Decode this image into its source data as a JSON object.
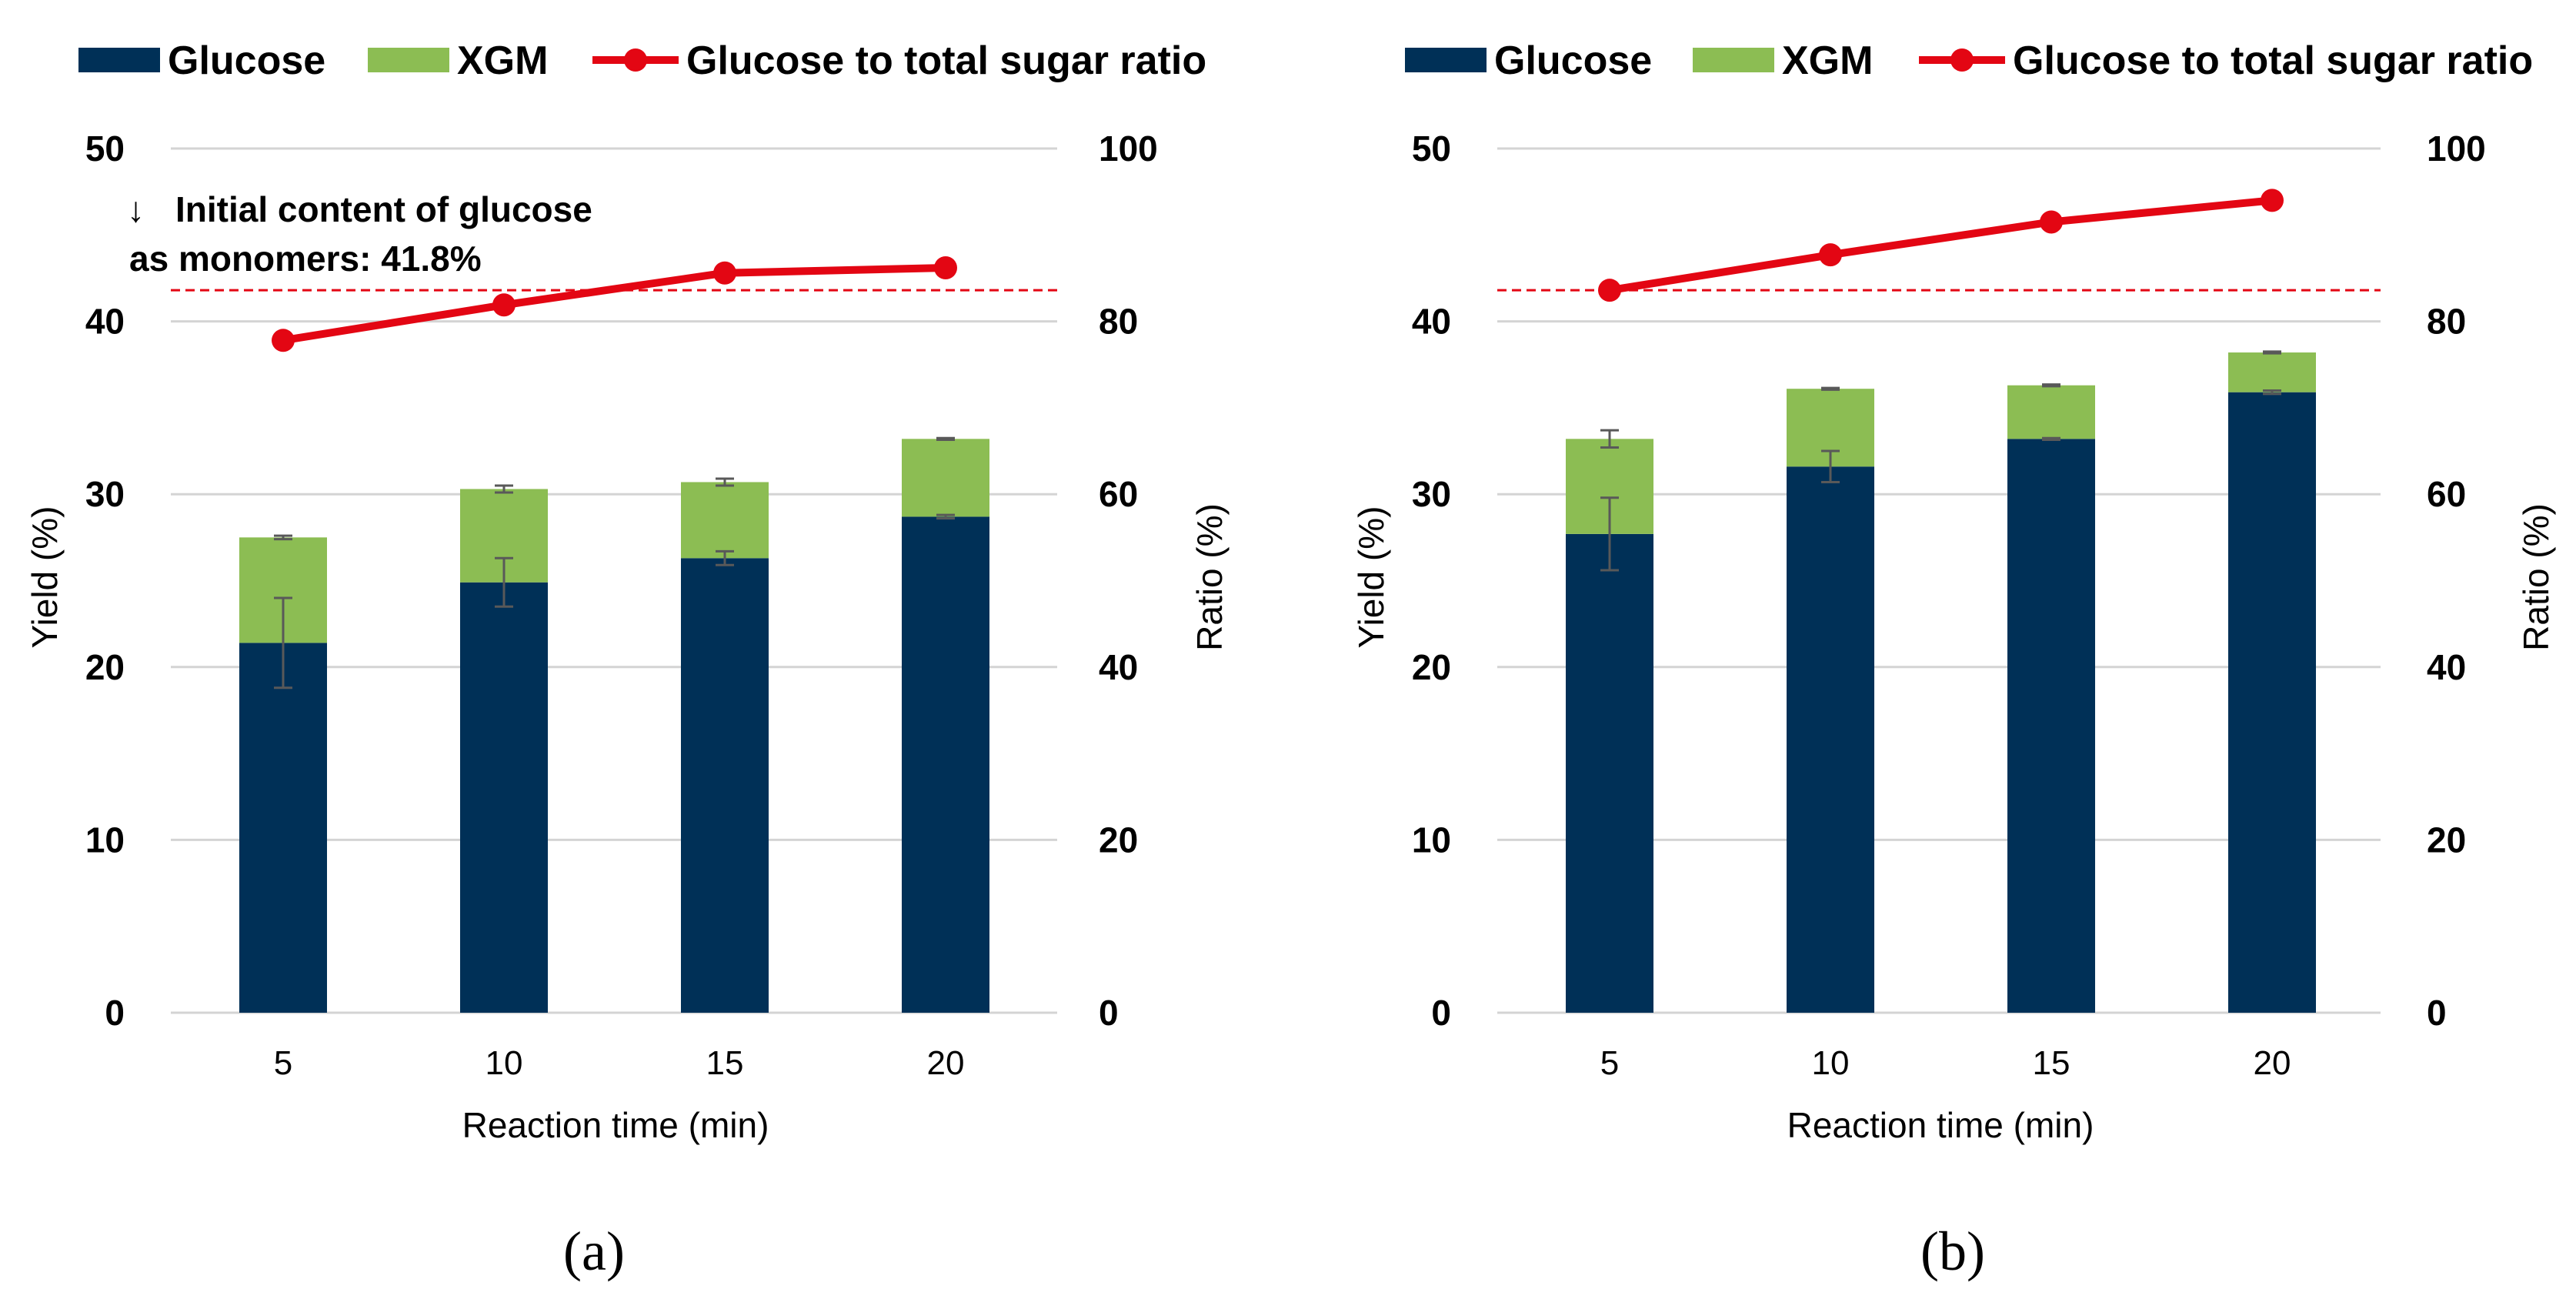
{
  "colors": {
    "glucose": "#003057",
    "xgm": "#8cbd53",
    "ratio": "#e30613",
    "grid": "#d4d4d4",
    "threshold": "#e30613",
    "errorbar": "#595959"
  },
  "chart_data": [
    {
      "type": "bar",
      "stacked": true,
      "panel_label": "(a)",
      "categories": [
        "5",
        "10",
        "15",
        "20"
      ],
      "xlabel": "Reaction time (min)",
      "ylabel": "Yield (%)",
      "y2label": "Ratio (%)",
      "ylim": [
        0,
        50
      ],
      "y2lim": [
        0,
        100
      ],
      "yticks": [
        "0",
        "10",
        "20",
        "30",
        "40",
        "50"
      ],
      "y2ticks": [
        "0",
        "20",
        "40",
        "60",
        "80",
        "100"
      ],
      "legend": [
        "Glucose",
        "XGM",
        "Glucose to total sugar ratio"
      ],
      "series": [
        {
          "name": "Glucose",
          "values": [
            21.4,
            24.9,
            26.3,
            28.7
          ],
          "errors": [
            2.6,
            1.4,
            0.4,
            0.1
          ]
        },
        {
          "name": "XGM",
          "values": [
            6.1,
            5.4,
            4.4,
            4.5
          ],
          "errors": [
            0.1,
            0.2,
            0.2,
            0.05
          ]
        }
      ],
      "line": {
        "name": "Glucose to total sugar ratio",
        "axis": "y2",
        "values": [
          77.8,
          81.9,
          85.6,
          86.2
        ]
      },
      "threshold": {
        "axis": "y",
        "value": 41.8
      },
      "annotation": {
        "arrow": "↓",
        "line1": "Initial content of glucose",
        "line2": "as monomers:  41.8%"
      }
    },
    {
      "type": "bar",
      "stacked": true,
      "panel_label": "(b)",
      "categories": [
        "5",
        "10",
        "15",
        "20"
      ],
      "xlabel": "Reaction time (min)",
      "ylabel": "Yield (%)",
      "y2label": "Ratio (%)",
      "ylim": [
        0,
        50
      ],
      "y2lim": [
        0,
        100
      ],
      "yticks": [
        "0",
        "10",
        "20",
        "30",
        "40",
        "50"
      ],
      "y2ticks": [
        "0",
        "20",
        "40",
        "60",
        "80",
        "100"
      ],
      "legend": [
        "Glucose",
        "XGM",
        "Glucose to total sugar ratio"
      ],
      "series": [
        {
          "name": "Glucose",
          "values": [
            27.7,
            31.6,
            33.2,
            35.9
          ],
          "errors": [
            2.1,
            0.9,
            0.05,
            0.1
          ]
        },
        {
          "name": "XGM",
          "values": [
            5.5,
            4.5,
            3.1,
            2.3
          ],
          "errors": [
            0.5,
            0.05,
            0.05,
            0.05
          ]
        }
      ],
      "line": {
        "name": "Glucose to total sugar ratio",
        "axis": "y2",
        "values": [
          83.6,
          87.7,
          91.5,
          94.0
        ]
      },
      "threshold": {
        "axis": "y",
        "value": 41.8
      }
    }
  ]
}
